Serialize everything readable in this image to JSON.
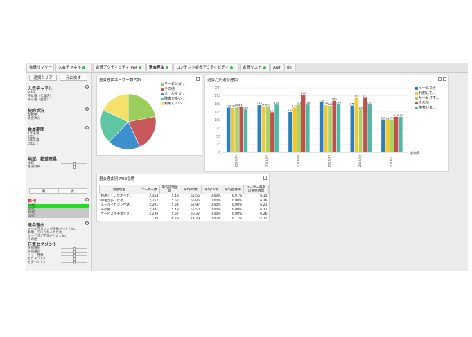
{
  "tabs": [
    {
      "label": "会員サマリー",
      "active": false,
      "dot": false
    },
    {
      "label": "入会チャネル",
      "active": false,
      "dot": true
    },
    {
      "label": "会員アクティビティ-WR",
      "active": false,
      "dot": true
    },
    {
      "label": "退会理由",
      "active": true,
      "dot": true
    },
    {
      "label": "コンテンツ会員アクティビティ",
      "active": false,
      "dot": true
    },
    {
      "label": "会員リスト",
      "active": false,
      "dot": true
    },
    {
      "label": "ANY",
      "active": false,
      "dot": false
    },
    {
      "label": "Bk",
      "active": false,
      "dot": false
    }
  ],
  "sidebar": {
    "clear_label": "選択クリア",
    "back_label": "元に戻す",
    "channel": {
      "title": "入会チャネル",
      "items": [
        "WEB",
        "申込書（代理店）",
        "申込書（直接）"
      ]
    },
    "contract": {
      "title": "契約状況",
      "items": [
        "契約中",
        "退会済み"
      ]
    },
    "period": {
      "title": "会員期間",
      "items": [
        "1年未満",
        "2年以上",
        "3年未満",
        "5年以上"
      ]
    },
    "region": {
      "title": "地域、都道府県",
      "items": [
        "地域",
        "都道府県"
      ]
    },
    "gender": {
      "male": "男",
      "female": "女"
    },
    "age": {
      "title": "年代",
      "items": [
        "20代",
        "30代",
        "40代",
        "50代"
      ],
      "selected": 0
    },
    "reason": {
      "title": "退会理由",
      "items": [
        "メールマガジンが迷惑だったため。",
        "利用していなかったため。",
        "サービスが不満だったため。",
        "その他"
      ]
    },
    "segment": {
      "title": "任意セグメント",
      "items": [
        "特別種別",
        "特別種別",
        "ペット種類",
        "セグメント4",
        "セグメント5"
      ]
    }
  },
  "pie_panel": {
    "title": "退会理由ユーザー数内訳",
    "legend": [
      "リーピンガ...",
      "その他",
      "メールマガ...",
      "障害が多い...",
      "利用してい..."
    ],
    "colors": [
      "#9acd5a",
      "#c9585a",
      "#3f8fcf",
      "#5fc6a3",
      "#f5e06a"
    ]
  },
  "bar_panel": {
    "title": "退会月別退会理由",
    "legend": [
      "メールマガ...",
      "利用して...",
      "サービス不...",
      "その他",
      "障害が多..."
    ],
    "x_axis_title": "退会月"
  },
  "table_panel": {
    "title": "退会理由別WEB指標",
    "headers": [
      "退会理由",
      "ユーザー数",
      "平均訪問回数",
      "平均PV数",
      "平均CV率",
      "平均直帰率",
      "ユーザー毎平均滞在時間"
    ],
    "rows": [
      [
        "利用していなかった...",
        "2,164",
        "5.43",
        "55.55",
        "0.00%",
        "0.91%",
        "6.15"
      ],
      [
        "障害が多いため。",
        "2,257",
        "5.52",
        "55.85",
        "0.00%",
        "0.00%",
        "6.26"
      ],
      [
        "メールマガジンが迷...",
        "2,201",
        "5.54",
        "55.97",
        "0.00%",
        "0.00%",
        "6.21"
      ],
      [
        "その他",
        "2,381",
        "5.48",
        "55.50",
        "0.00%",
        "0.00%",
        "6.21"
      ],
      [
        "サービスが不満でき...",
        "2,230",
        "5.57",
        "56.32",
        "0.00%",
        "0.00%",
        "6.26"
      ],
      [
        "",
        "48",
        "6.29",
        "74.29",
        "0.07%",
        "0.17%",
        "12.71"
      ]
    ]
  },
  "chart_data": [
    {
      "type": "pie",
      "title": "退会理由ユーザー数内訳",
      "labels": [
        "リーピンガ...",
        "その他",
        "メールマガ...",
        "障害が多い...",
        "利用してい..."
      ],
      "values": [
        22,
        21,
        19,
        20,
        18
      ]
    },
    {
      "type": "bar",
      "title": "退会月別退会理由",
      "xlabel": "退会月",
      "categories": [
        "2013/06",
        "2013/07",
        "2013/08",
        "2013/09",
        "2013/10",
        "2013/11"
      ],
      "ylim": [
        0,
        200
      ],
      "yticks": [
        0,
        25,
        50,
        75,
        100,
        125,
        150,
        175,
        200
      ],
      "series": [
        {
          "name": "メールマガ...",
          "color": "#2f7fbf",
          "values": [
            139,
            146,
            125,
            156,
            145,
            102
          ]
        },
        {
          "name": "利用して...",
          "color": "#f0c93a",
          "values": [
            138,
            143,
            139,
            146,
            171,
            99
          ]
        },
        {
          "name": "サービス不...",
          "color": "#a7d36a",
          "values": [
            142,
            143,
            148,
            144,
            133,
            102
          ]
        },
        {
          "name": "その他",
          "color": "#c0504d",
          "values": [
            141,
            124,
            179,
            160,
            171,
            110
          ]
        },
        {
          "name": "障害が多...",
          "color": "#4fb7a4",
          "values": [
            133,
            148,
            148,
            149,
            150,
            110
          ]
        }
      ]
    }
  ]
}
